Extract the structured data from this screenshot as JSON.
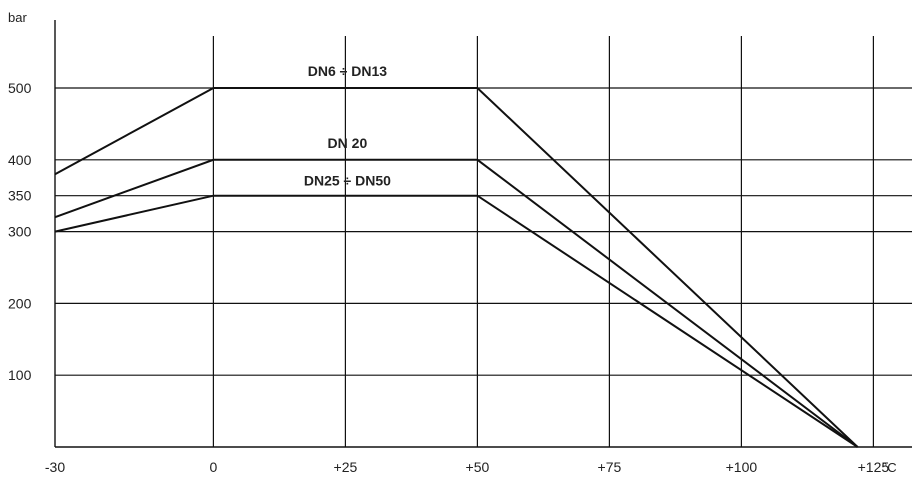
{
  "chart_data": {
    "type": "line",
    "title": "",
    "xlabel": "°C",
    "ylabel": "bar",
    "xlim": [
      -30,
      135
    ],
    "ylim": [
      0,
      560
    ],
    "x_ticks": [
      -30,
      0,
      25,
      50,
      75,
      100,
      125
    ],
    "x_tick_labels": [
      "-30",
      "0",
      "+25",
      "+50",
      "+75",
      "+100",
      "+125"
    ],
    "y_ticks": [
      100,
      200,
      300,
      350,
      400,
      500
    ],
    "y_tick_labels": [
      "100",
      "200",
      "300",
      "350",
      "400",
      "500"
    ],
    "grid": true,
    "legend": "none",
    "series": [
      {
        "name": "DN6 ÷ DN13",
        "x": [
          -30,
          0,
          50,
          122
        ],
        "y": [
          380,
          500,
          500,
          0
        ]
      },
      {
        "name": "DN 20",
        "x": [
          -30,
          0,
          50,
          122
        ],
        "y": [
          320,
          400,
          400,
          0
        ]
      },
      {
        "name": "DN25 ÷ DN50",
        "x": [
          -30,
          0,
          50,
          122
        ],
        "y": [
          300,
          350,
          350,
          0
        ]
      }
    ]
  }
}
